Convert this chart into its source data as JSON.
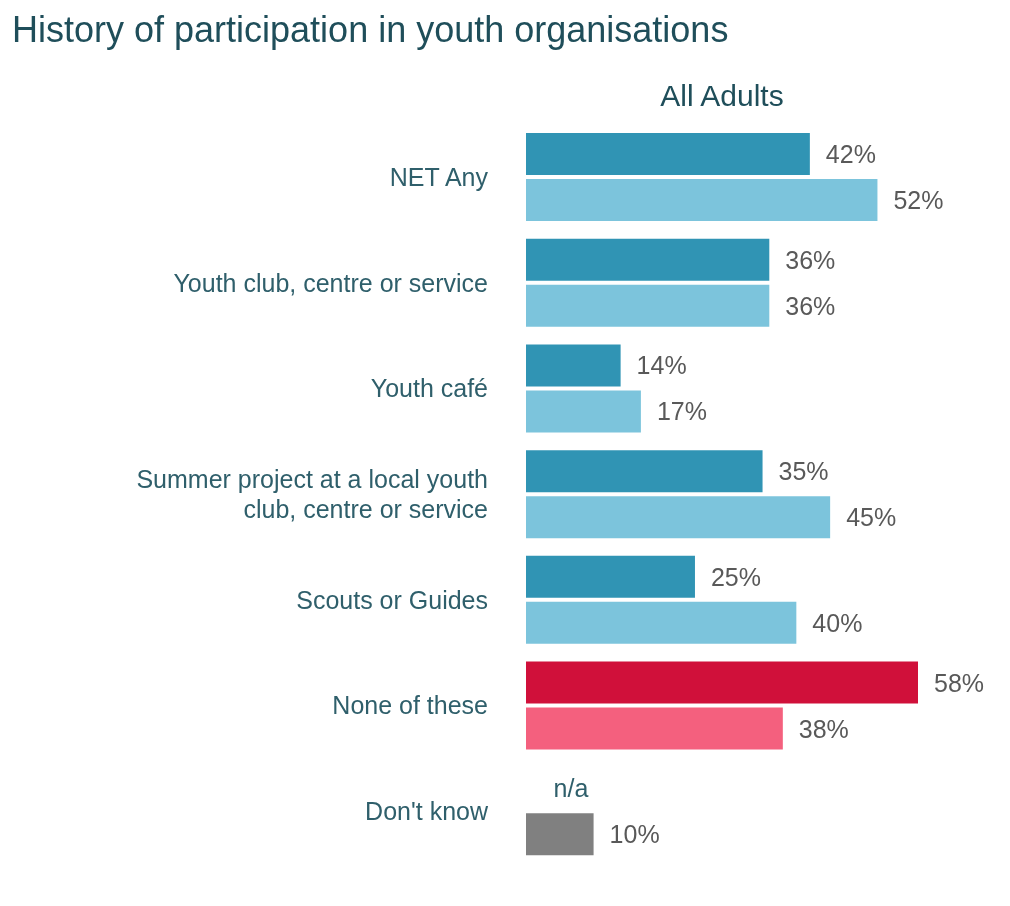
{
  "chart_data": {
    "type": "bar",
    "orientation": "horizontal",
    "title": "History of participation in youth organisations",
    "subtitle": "All Adults",
    "categories": [
      "NET Any",
      "Youth club, centre or service",
      "Youth café",
      "Summer project at a local youth club, centre or service",
      "Scouts or Guides",
      "None of these",
      "Don't know"
    ],
    "series": [
      {
        "colors": [
          "#3094b4",
          "#3094b4",
          "#3094b4",
          "#3094b4",
          "#3094b4",
          "#d0103a",
          "#808080"
        ],
        "values": [
          42,
          36,
          14,
          35,
          25,
          58,
          null
        ],
        "value_labels": [
          "42%",
          "36%",
          "14%",
          "35%",
          "25%",
          "58%",
          "n/a"
        ]
      },
      {
        "colors": [
          "#7cc4dc",
          "#7cc4dc",
          "#7cc4dc",
          "#7cc4dc",
          "#7cc4dc",
          "#f4607e",
          "#808080"
        ],
        "values": [
          52,
          36,
          17,
          45,
          40,
          38,
          10
        ],
        "value_labels": [
          "52%",
          "36%",
          "17%",
          "45%",
          "40%",
          "38%",
          "10%"
        ]
      }
    ]
  }
}
